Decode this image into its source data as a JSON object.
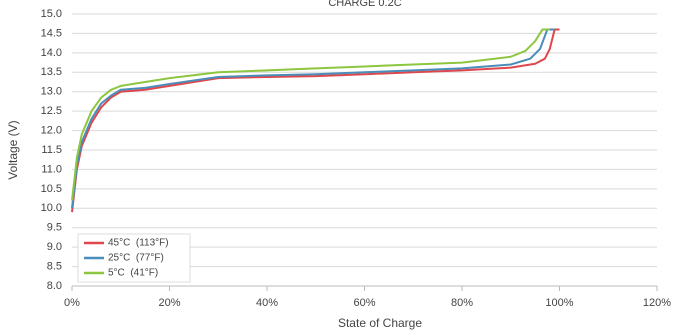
{
  "chart_data": {
    "type": "line",
    "title": "CHARGE 0.2C",
    "x_label": "State of Charge",
    "y_label": "Voltage (V)",
    "xlim": [
      0,
      120
    ],
    "ylim": [
      8,
      15
    ],
    "xticks": [
      {
        "value": 0,
        "label": "0%"
      },
      {
        "value": 20,
        "label": "20%"
      },
      {
        "value": 40,
        "label": "40%"
      },
      {
        "value": 60,
        "label": "60%"
      },
      {
        "value": 80,
        "label": "80%"
      },
      {
        "value": 100,
        "label": "100%"
      },
      {
        "value": 120,
        "label": "120%"
      }
    ],
    "yticks": [
      {
        "value": 8,
        "label": "8.0"
      },
      8.5,
      {
        "value": 9,
        "label": "9.0"
      },
      9.5,
      {
        "value": 10,
        "label": "10.0"
      },
      10.5,
      {
        "value": 11,
        "label": "11.0"
      },
      11.5,
      {
        "value": 12,
        "label": "12.0"
      },
      12.5,
      {
        "value": 13,
        "label": "13.0"
      },
      13.5,
      {
        "value": 14,
        "label": "14.0"
      },
      14.5,
      {
        "value": 15,
        "label": "15.0"
      }
    ],
    "grid": true,
    "legend": "lower left",
    "series": [
      {
        "name": "45°C  (113°F)",
        "color": "#e0474c",
        "x": [
          0,
          1,
          2,
          4,
          6,
          8,
          10,
          15,
          20,
          30,
          40,
          50,
          60,
          70,
          80,
          90,
          95,
          97,
          98,
          99,
          100
        ],
        "values": [
          9.9,
          11,
          11.6,
          12.2,
          12.6,
          12.85,
          13,
          13.05,
          13.15,
          13.35,
          13.38,
          13.4,
          13.45,
          13.5,
          13.55,
          13.62,
          13.72,
          13.85,
          14.1,
          14.6,
          14.6
        ]
      },
      {
        "name": "25°C  (77°F)",
        "color": "#4a8db8",
        "x": [
          0,
          1,
          2,
          4,
          6,
          8,
          10,
          15,
          20,
          30,
          40,
          50,
          60,
          70,
          80,
          90,
          94,
          96,
          97.5,
          99
        ],
        "values": [
          10,
          11.1,
          11.7,
          12.3,
          12.7,
          12.9,
          13.05,
          13.1,
          13.2,
          13.38,
          13.42,
          13.45,
          13.5,
          13.55,
          13.6,
          13.7,
          13.85,
          14.1,
          14.6,
          14.6
        ]
      },
      {
        "name": "5°C  (41°F)",
        "color": "#8dc63f",
        "x": [
          0,
          1,
          2,
          4,
          6,
          8,
          10,
          15,
          20,
          30,
          40,
          50,
          60,
          70,
          80,
          90,
          93,
          95,
          96.5,
          98
        ],
        "values": [
          10.2,
          11.3,
          11.9,
          12.5,
          12.85,
          13.05,
          13.15,
          13.25,
          13.35,
          13.5,
          13.55,
          13.6,
          13.65,
          13.7,
          13.75,
          13.9,
          14.05,
          14.3,
          14.6,
          14.6
        ]
      }
    ]
  }
}
